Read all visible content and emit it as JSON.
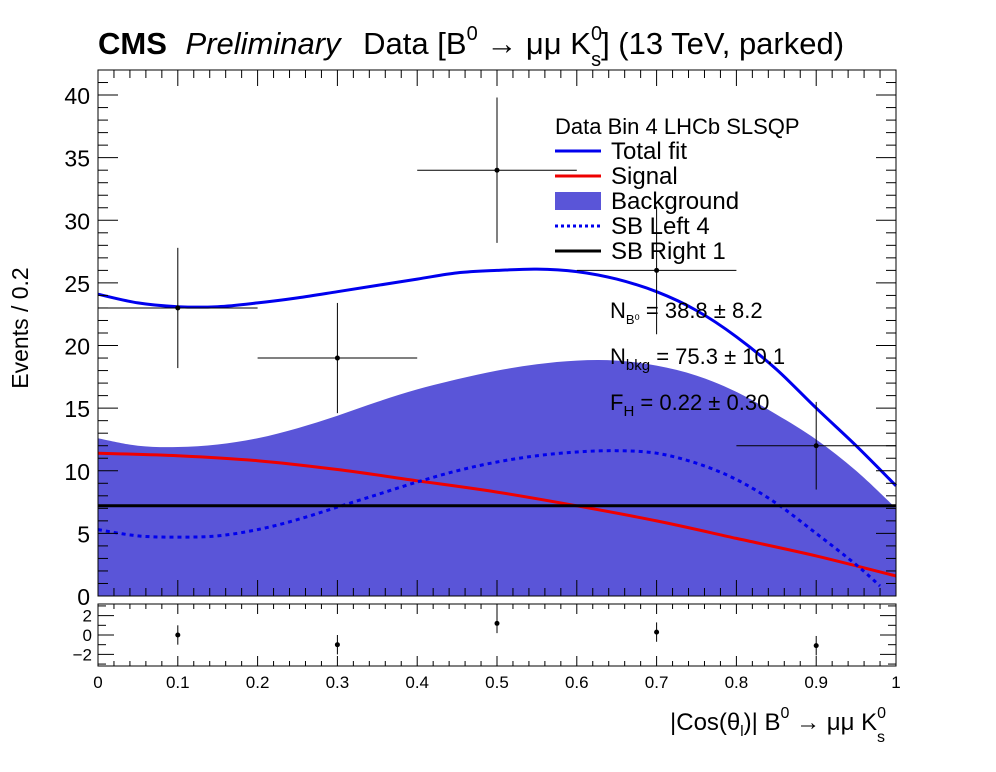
{
  "header": {
    "cms": "CMS",
    "preliminary": "Preliminary",
    "title_pre": "Data [B",
    "title_sup1": "0",
    "title_mid": " → μμ K",
    "title_sup2": "0",
    "title_sub2": "s",
    "title_post": "] (13 TeV, parked)"
  },
  "legend": {
    "header": "Data Bin 4 LHCb SLSQP",
    "entries": [
      {
        "label": "Total fit",
        "color": "#0000ee",
        "style": "line"
      },
      {
        "label": "Signal",
        "color": "#ee0000",
        "style": "line"
      },
      {
        "label": "Background",
        "color": "#5a55d8",
        "style": "fill"
      },
      {
        "label": "SB Left 4",
        "color": "#0000ee",
        "style": "dotted"
      },
      {
        "label": "SB Right 1",
        "color": "#000000",
        "style": "line"
      }
    ]
  },
  "annotations": {
    "nsig_label": "N",
    "nsig_sub": "B⁰",
    "nsig_value": " = 38.8 ± 8.2",
    "nbkg_label": "N",
    "nbkg_sub": "bkg",
    "nbkg_value": " = 75.3 ± 10.1",
    "fh_label": "F",
    "fh_sub": "H",
    "fh_value": " = 0.22 ± 0.30"
  },
  "chart_data": {
    "type": "line",
    "ylabel": "Events / 0.2",
    "xlabel_pre": "|Cos(θ",
    "xlabel_sub1": "l",
    "xlabel_mid": ")| B",
    "xlabel_sup1": "0",
    "xlabel_mid2": " → μμ K",
    "xlabel_sup2": "0",
    "xlabel_sub2": "s",
    "xlim": [
      0,
      1
    ],
    "ylim": [
      0,
      42
    ],
    "x_ticks": [
      "0",
      "0.1",
      "0.2",
      "0.3",
      "0.4",
      "0.5",
      "0.6",
      "0.7",
      "0.8",
      "0.9",
      "1"
    ],
    "y_ticks": [
      "0",
      "5",
      "10",
      "15",
      "20",
      "25",
      "30",
      "35",
      "40"
    ],
    "data_points": [
      {
        "x": 0.1,
        "y": 23,
        "xerr": 0.1,
        "yerr": 4.8
      },
      {
        "x": 0.3,
        "y": 19,
        "xerr": 0.1,
        "yerr": 4.4
      },
      {
        "x": 0.5,
        "y": 34,
        "xerr": 0.1,
        "yerr": 5.8
      },
      {
        "x": 0.7,
        "y": 26,
        "xerr": 0.1,
        "yerr": 5.1
      },
      {
        "x": 0.9,
        "y": 12,
        "xerr": 0.1,
        "yerr": 3.5
      }
    ],
    "series": [
      {
        "key": "total",
        "x": [
          0,
          0.05,
          0.1,
          0.15,
          0.2,
          0.25,
          0.3,
          0.35,
          0.4,
          0.45,
          0.5,
          0.55,
          0.6,
          0.65,
          0.7,
          0.75,
          0.8,
          0.85,
          0.9,
          0.95,
          1.0
        ],
        "y": [
          24.1,
          23.4,
          23.1,
          23.1,
          23.4,
          23.8,
          24.3,
          24.8,
          25.3,
          25.8,
          26.0,
          26.1,
          25.9,
          25.3,
          24.3,
          22.8,
          20.7,
          18.1,
          15.0,
          12.0,
          8.8
        ]
      },
      {
        "key": "signal",
        "x": [
          0,
          0.1,
          0.2,
          0.3,
          0.4,
          0.5,
          0.6,
          0.7,
          0.8,
          0.9,
          1.0
        ],
        "y": [
          11.4,
          11.2,
          10.8,
          10.1,
          9.2,
          8.3,
          7.2,
          6.0,
          4.6,
          3.2,
          1.6
        ]
      },
      {
        "key": "background",
        "x": [
          0,
          0.05,
          0.1,
          0.15,
          0.2,
          0.25,
          0.3,
          0.35,
          0.4,
          0.45,
          0.5,
          0.55,
          0.6,
          0.65,
          0.7,
          0.75,
          0.8,
          0.85,
          0.9,
          0.95,
          1.0
        ],
        "y": [
          12.6,
          12.0,
          11.9,
          12.1,
          12.6,
          13.4,
          14.4,
          15.5,
          16.5,
          17.3,
          18.0,
          18.5,
          18.8,
          18.8,
          18.4,
          17.6,
          16.3,
          14.5,
          12.5,
          10.0,
          7.0
        ]
      },
      {
        "key": "sb_left",
        "x": [
          0,
          0.05,
          0.1,
          0.15,
          0.2,
          0.25,
          0.3,
          0.35,
          0.4,
          0.45,
          0.5,
          0.55,
          0.6,
          0.65,
          0.7,
          0.75,
          0.8,
          0.85,
          0.9,
          0.95,
          0.98
        ],
        "y": [
          5.3,
          4.8,
          4.7,
          4.8,
          5.3,
          6.1,
          7.1,
          8.1,
          9.1,
          10.0,
          10.7,
          11.2,
          11.5,
          11.6,
          11.4,
          10.6,
          9.3,
          7.4,
          5.0,
          2.5,
          0.8
        ]
      },
      {
        "key": "sb_right",
        "x": [
          0,
          1
        ],
        "y": [
          7.2,
          7.2
        ]
      }
    ],
    "residuals": {
      "ylim": [
        -3.2,
        3.2
      ],
      "y_ticks": [
        "-2",
        "0",
        "2"
      ],
      "points": [
        {
          "x": 0.1,
          "y": 0.0,
          "yerr": 1.0
        },
        {
          "x": 0.3,
          "y": -1.0,
          "yerr": 1.0
        },
        {
          "x": 0.5,
          "y": 1.2,
          "yerr": 1.0
        },
        {
          "x": 0.7,
          "y": 0.3,
          "yerr": 1.0
        },
        {
          "x": 0.9,
          "y": -1.1,
          "yerr": 1.0
        }
      ]
    }
  }
}
